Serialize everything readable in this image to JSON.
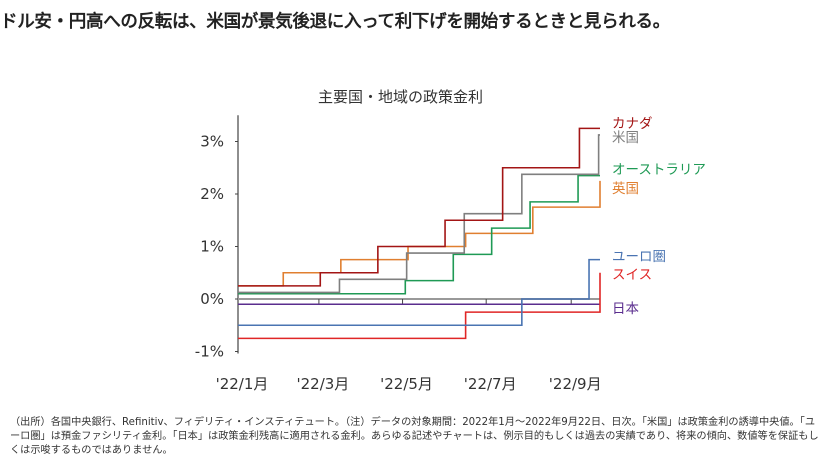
{
  "headline": "ドル安・円高への反転は、米国が景気後退に入って利下げを開始するときと見られる。",
  "footnote": "（出所）各国中央銀行、Refinitiv、フィデリティ・インスティテュート。（注）データの対象期間：2022年1月～2022年9月22日、日次。「米国」は政策金利の誘導中央値。「ユーロ圏」は預金ファシリティ金利。「日本」は政策金利残高に適用される金利。あらゆる記述やチャートは、例示目的もしくは過去の実績であり、将来の傾向、数値等を保証もしくは示唆するものではありません。",
  "chart_data": {
    "type": "line",
    "title": "主要国・地域の政策金利",
    "xlabel": "",
    "ylabel": "",
    "x_unit": "day of 2022 (0 = Jan 1)",
    "xlim": [
      0,
      264
    ],
    "ylim": [
      -1,
      3.5
    ],
    "yticks": [
      {
        "v": -1,
        "label": "-1%"
      },
      {
        "v": 0,
        "label": "0%"
      },
      {
        "v": 1,
        "label": "1%"
      },
      {
        "v": 2,
        "label": "2%"
      },
      {
        "v": 3,
        "label": "3%"
      }
    ],
    "xticks": [
      {
        "v": 0,
        "label": "'22/1月"
      },
      {
        "v": 59,
        "label": "'22/3月"
      },
      {
        "v": 120,
        "label": "'22/5月"
      },
      {
        "v": 181,
        "label": "'22/7月"
      },
      {
        "v": 243,
        "label": "'22/9月"
      }
    ],
    "step": true,
    "series": [
      {
        "name": "カナダ",
        "color": "#a31515",
        "points": [
          [
            0,
            0.25
          ],
          [
            60,
            0.5
          ],
          [
            102,
            1.0
          ],
          [
            151,
            1.5
          ],
          [
            193,
            2.5
          ],
          [
            249,
            3.25
          ],
          [
            264,
            3.25
          ]
        ]
      },
      {
        "name": "米国",
        "color": "#7f7f7f",
        "points": [
          [
            0,
            0.125
          ],
          [
            74,
            0.375
          ],
          [
            123,
            0.875
          ],
          [
            165,
            1.625
          ],
          [
            207,
            2.375
          ],
          [
            263,
            3.125
          ],
          [
            264,
            3.125
          ]
        ]
      },
      {
        "name": "オーストラリア",
        "color": "#1f9a55",
        "points": [
          [
            0,
            0.1
          ],
          [
            122,
            0.35
          ],
          [
            157,
            0.85
          ],
          [
            185,
            1.35
          ],
          [
            213,
            1.85
          ],
          [
            248,
            2.35
          ],
          [
            264,
            2.35
          ]
        ]
      },
      {
        "name": "英国",
        "color": "#e07f30",
        "points": [
          [
            0,
            0.25
          ],
          [
            33,
            0.5
          ],
          [
            75,
            0.75
          ],
          [
            124,
            1.0
          ],
          [
            166,
            1.25
          ],
          [
            215,
            1.75
          ],
          [
            264,
            2.25
          ]
        ]
      },
      {
        "name": "ユーロ圏",
        "color": "#4a74b2",
        "points": [
          [
            0,
            -0.5
          ],
          [
            207,
            0.0
          ],
          [
            256,
            0.75
          ],
          [
            264,
            0.75
          ]
        ]
      },
      {
        "name": "スイス",
        "color": "#e02626",
        "points": [
          [
            0,
            -0.75
          ],
          [
            166,
            -0.25
          ],
          [
            264,
            0.5
          ]
        ]
      },
      {
        "name": "日本",
        "color": "#5a2d8e",
        "points": [
          [
            0,
            -0.1
          ],
          [
            264,
            -0.1
          ]
        ]
      }
    ]
  }
}
